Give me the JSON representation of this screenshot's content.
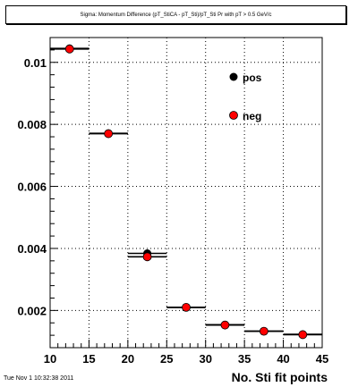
{
  "title": "Sigma: Momentum Difference (pT_StiCA - pT_Sti)/pT_Sti Pr with pT > 0.5 GeV/c",
  "footer": "Tue Nov  1 10:32:38 2011",
  "chart_data": {
    "type": "scatter",
    "title": "Sigma: Momentum Difference (pT_StiCA - pT_Sti)/pT_Sti Pr with pT > 0.5 GeV/c",
    "xlabel": "No. Sti fit points",
    "ylabel": "",
    "xlim": [
      10,
      45
    ],
    "ylim": [
      0.0008,
      0.0108
    ],
    "grid": true,
    "legend_position": "top-right",
    "x_ticks": [
      "10",
      "15",
      "20",
      "25",
      "30",
      "35",
      "40",
      "45"
    ],
    "y_ticks": [
      "0.002",
      "0.004",
      "0.006",
      "0.008",
      "0.01"
    ],
    "bins": [
      [
        10,
        15
      ],
      [
        15,
        20
      ],
      [
        20,
        25
      ],
      [
        25,
        30
      ],
      [
        30,
        35
      ],
      [
        35,
        40
      ],
      [
        40,
        45
      ]
    ],
    "x": [
      12.5,
      17.5,
      22.5,
      27.5,
      32.5,
      37.5,
      42.5
    ],
    "series": [
      {
        "name": "pos",
        "color": "#000000",
        "values": [
          0.01045,
          0.00771,
          0.00384,
          0.0021,
          0.00154,
          0.00133,
          0.00123
        ]
      },
      {
        "name": "neg",
        "color": "#ff0000",
        "values": [
          0.01043,
          0.0077,
          0.00373,
          0.0021,
          0.00153,
          0.00133,
          0.00122
        ]
      }
    ]
  }
}
